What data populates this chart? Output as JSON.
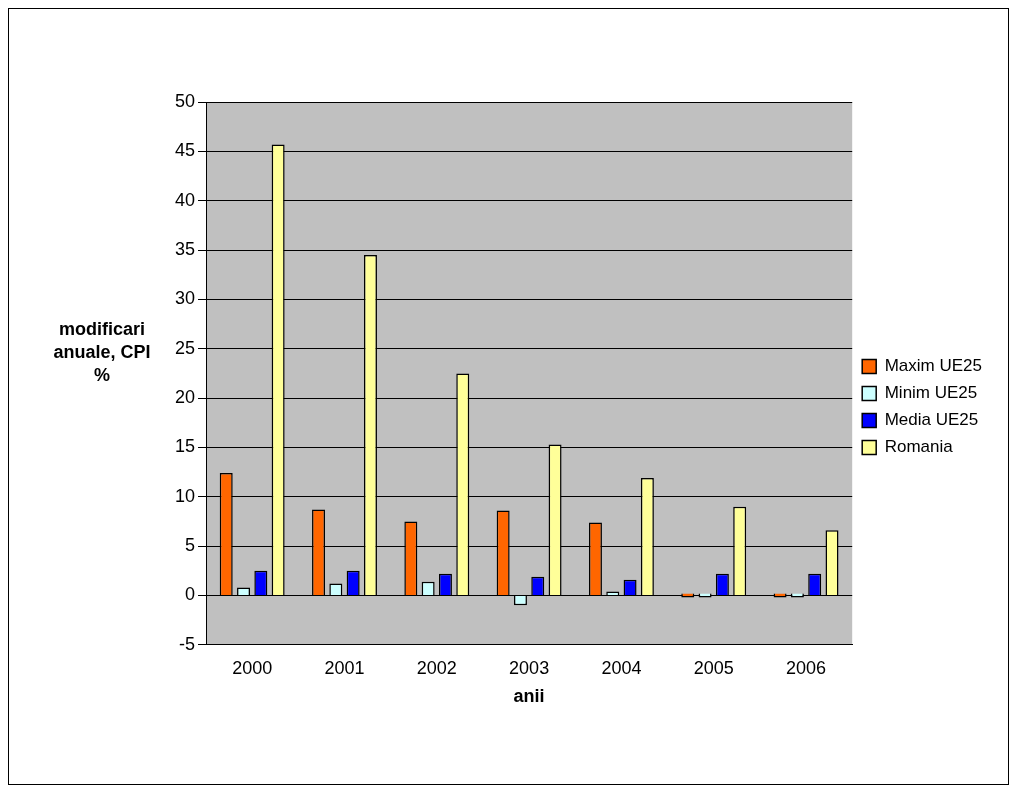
{
  "chart_data": {
    "type": "bar",
    "xlabel": "anii",
    "ylabel": "modificari anuale, CPI %",
    "categories": [
      "2000",
      "2001",
      "2002",
      "2003",
      "2004",
      "2005",
      "2006"
    ],
    "series": [
      {
        "name": "Maxim UE25",
        "color": "#ff6600",
        "values": [
          12.4,
          8.7,
          7.5,
          8.6,
          7.4,
          0,
          0
        ]
      },
      {
        "name": "Minim UE25",
        "color": "#ccffff",
        "values": [
          0.8,
          1.2,
          1.4,
          -1.0,
          0.1,
          0,
          0
        ]
      },
      {
        "name": "Media UE25",
        "color": "#0000ff",
        "values": [
          2.5,
          2.5,
          2.2,
          1.9,
          1.6,
          2.2,
          2.2
        ]
      },
      {
        "name": "Romania",
        "color": "#ffff99",
        "values": [
          45.7,
          34.5,
          22.5,
          15.3,
          11.9,
          9.0,
          6.6
        ]
      }
    ],
    "ylim": [
      -5,
      50
    ],
    "yticks": [
      -5,
      0,
      5,
      10,
      15,
      20,
      25,
      30,
      35,
      40,
      45,
      50
    ],
    "grid": "y",
    "legend": "right"
  }
}
